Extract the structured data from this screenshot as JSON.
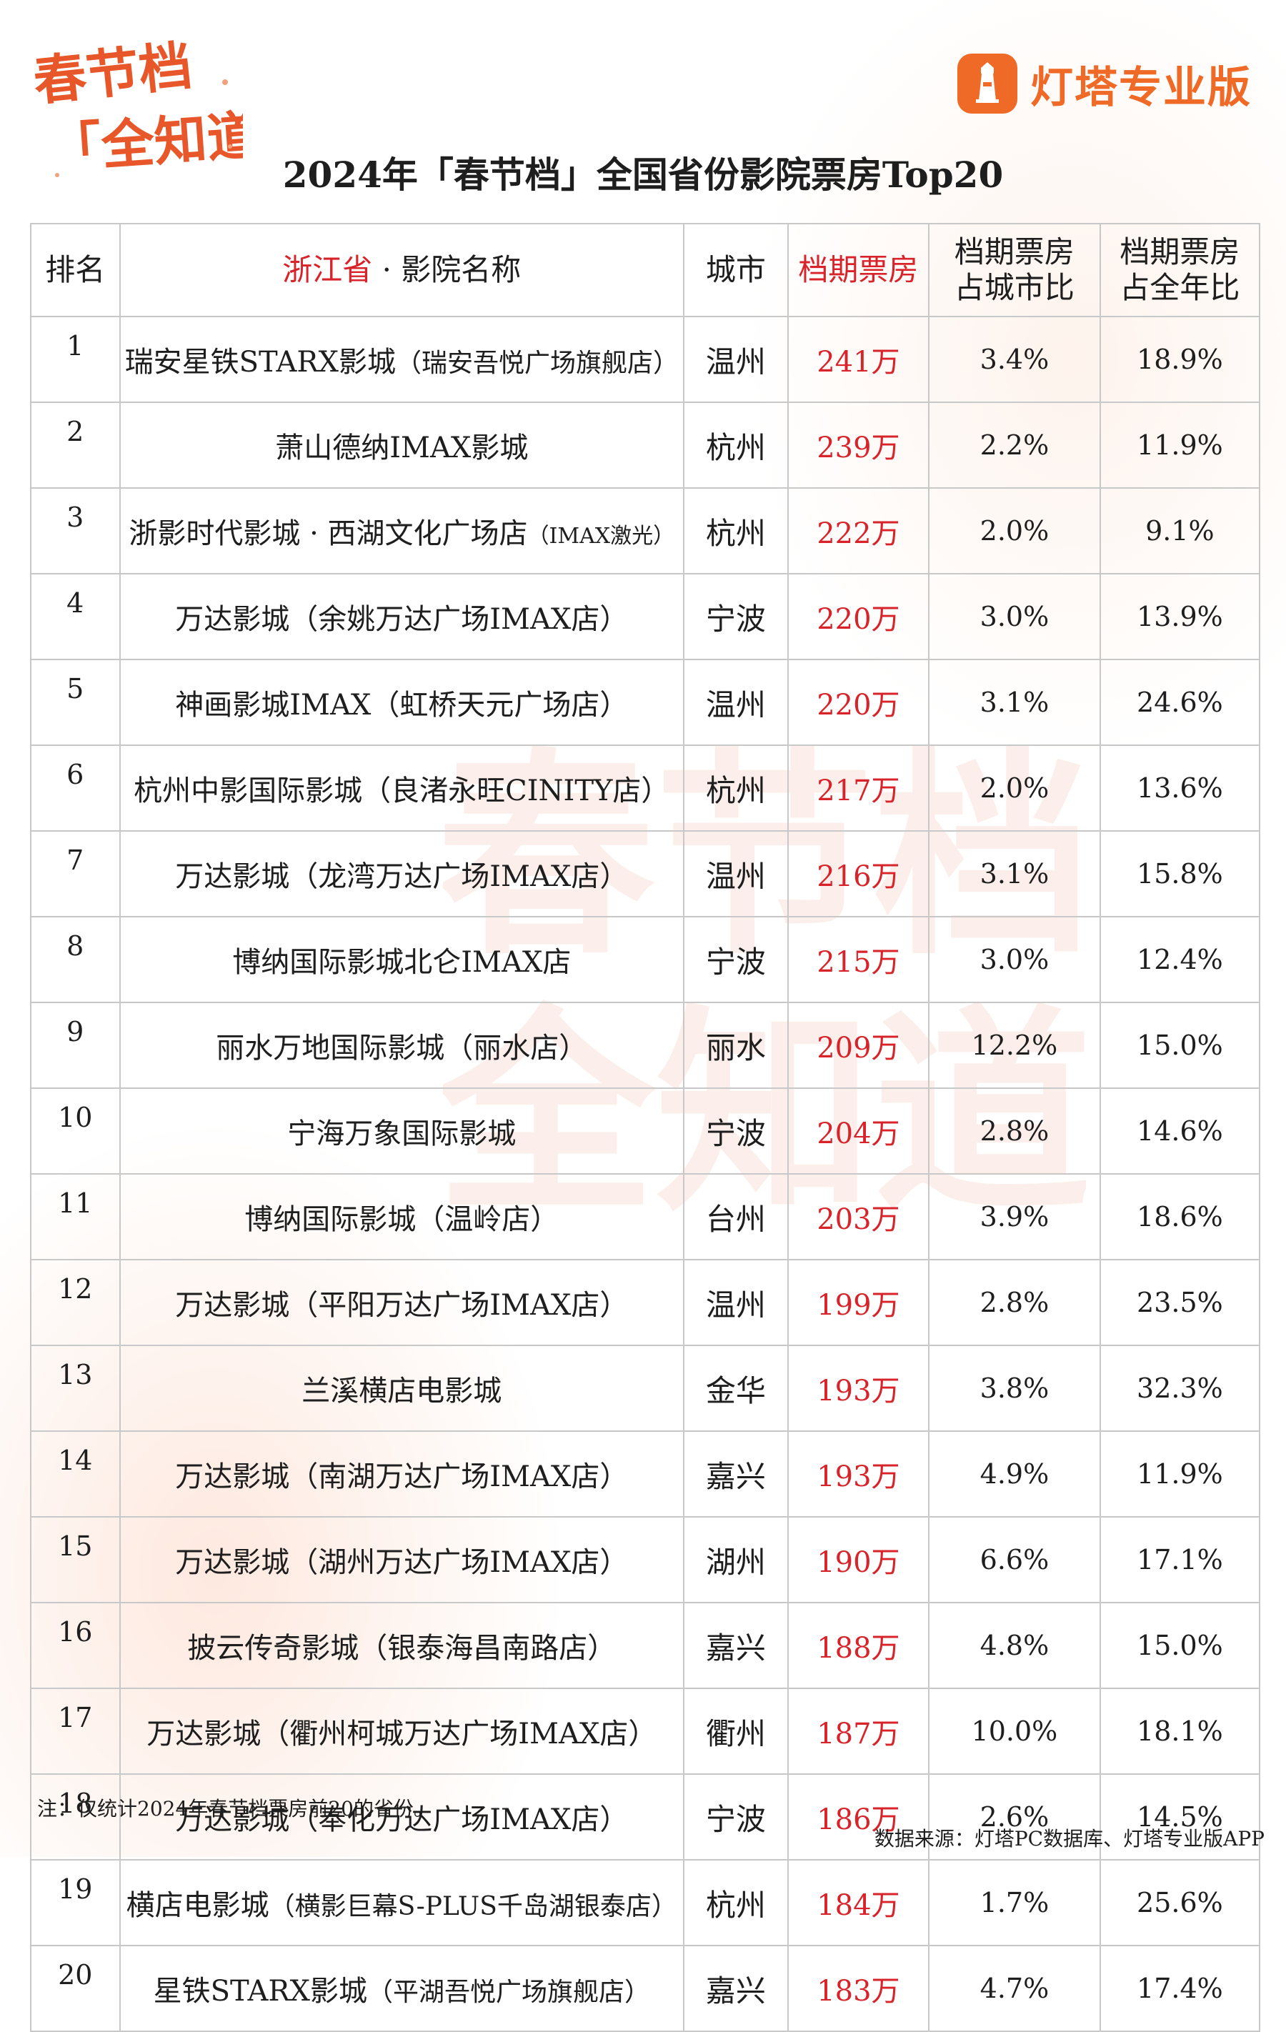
{
  "header": {
    "festival_logo_text": "春节档「全知道」",
    "brand_name": "灯塔专业版",
    "title": "2024年「春节档」全国省份影院票房Top20"
  },
  "table": {
    "headers": {
      "rank": "排名",
      "province": "浙江省",
      "name_suffix": " · 影院名称",
      "city": "城市",
      "box": "档期票房",
      "city_share_line1": "档期票房",
      "city_share_line2": "占城市比",
      "year_share_line1": "档期票房",
      "year_share_line2": "占全年比"
    },
    "rows": [
      {
        "rank": "1",
        "name": "瑞安星铁STARX影城",
        "sub": "（瑞安吾悦广场旗舰店）",
        "city": "温州",
        "box": "241万",
        "city_share": "3.4%",
        "year_share": "18.9%"
      },
      {
        "rank": "2",
        "name": "萧山德纳IMAX影城",
        "sub": "",
        "city": "杭州",
        "box": "239万",
        "city_share": "2.2%",
        "year_share": "11.9%"
      },
      {
        "rank": "3",
        "name": "浙影时代影城 · 西湖文化广场店",
        "sub": "（IMAX激光）",
        "city": "杭州",
        "box": "222万",
        "city_share": "2.0%",
        "year_share": "9.1%"
      },
      {
        "rank": "4",
        "name": "万达影城（余姚万达广场IMAX店）",
        "sub": "",
        "city": "宁波",
        "box": "220万",
        "city_share": "3.0%",
        "year_share": "13.9%"
      },
      {
        "rank": "5",
        "name": "神画影城IMAX（虹桥天元广场店）",
        "sub": "",
        "city": "温州",
        "box": "220万",
        "city_share": "3.1%",
        "year_share": "24.6%"
      },
      {
        "rank": "6",
        "name": "杭州中影国际影城（良渚永旺CINITY店）",
        "sub": "",
        "city": "杭州",
        "box": "217万",
        "city_share": "2.0%",
        "year_share": "13.6%"
      },
      {
        "rank": "7",
        "name": "万达影城（龙湾万达广场IMAX店）",
        "sub": "",
        "city": "温州",
        "box": "216万",
        "city_share": "3.1%",
        "year_share": "15.8%"
      },
      {
        "rank": "8",
        "name": "博纳国际影城北仑IMAX店",
        "sub": "",
        "city": "宁波",
        "box": "215万",
        "city_share": "3.0%",
        "year_share": "12.4%"
      },
      {
        "rank": "9",
        "name": "丽水万地国际影城（丽水店）",
        "sub": "",
        "city": "丽水",
        "box": "209万",
        "city_share": "12.2%",
        "year_share": "15.0%"
      },
      {
        "rank": "10",
        "name": "宁海万象国际影城",
        "sub": "",
        "city": "宁波",
        "box": "204万",
        "city_share": "2.8%",
        "year_share": "14.6%"
      },
      {
        "rank": "11",
        "name": "博纳国际影城（温岭店）",
        "sub": "",
        "city": "台州",
        "box": "203万",
        "city_share": "3.9%",
        "year_share": "18.6%"
      },
      {
        "rank": "12",
        "name": "万达影城（平阳万达广场IMAX店）",
        "sub": "",
        "city": "温州",
        "box": "199万",
        "city_share": "2.8%",
        "year_share": "23.5%"
      },
      {
        "rank": "13",
        "name": "兰溪横店电影城",
        "sub": "",
        "city": "金华",
        "box": "193万",
        "city_share": "3.8%",
        "year_share": "32.3%"
      },
      {
        "rank": "14",
        "name": "万达影城（南湖万达广场IMAX店）",
        "sub": "",
        "city": "嘉兴",
        "box": "193万",
        "city_share": "4.9%",
        "year_share": "11.9%"
      },
      {
        "rank": "15",
        "name": "万达影城（湖州万达广场IMAX店）",
        "sub": "",
        "city": "湖州",
        "box": "190万",
        "city_share": "6.6%",
        "year_share": "17.1%"
      },
      {
        "rank": "16",
        "name": "披云传奇影城（银泰海昌南路店）",
        "sub": "",
        "city": "嘉兴",
        "box": "188万",
        "city_share": "4.8%",
        "year_share": "15.0%"
      },
      {
        "rank": "17",
        "name": "万达影城（衢州柯城万达广场IMAX店）",
        "sub": "",
        "city": "衢州",
        "box": "187万",
        "city_share": "10.0%",
        "year_share": "18.1%"
      },
      {
        "rank": "18",
        "name": "万达影城（奉化万达广场IMAX店）",
        "sub": "",
        "city": "宁波",
        "box": "186万",
        "city_share": "2.6%",
        "year_share": "14.5%"
      },
      {
        "rank": "19",
        "name": "横店电影城",
        "sub": "（横影巨幕S-PLUS千岛湖银泰店）",
        "city": "杭州",
        "box": "184万",
        "city_share": "1.7%",
        "year_share": "25.6%"
      },
      {
        "rank": "20",
        "name": "星铁STARX影城",
        "sub": "（平湖吾悦广场旗舰店）",
        "city": "嘉兴",
        "box": "183万",
        "city_share": "4.7%",
        "year_share": "17.4%"
      }
    ]
  },
  "footnote": "注：仅统计2024年春节档票房前20的省份。",
  "source": "数据来源：灯塔PC数据库、灯塔专业版APP",
  "colors": {
    "accent_red": "#d8232a",
    "brand_orange": "#ef6a26",
    "border": "#c8c8c8"
  },
  "icons": {
    "brand": "lighthouse-logo-icon",
    "festival": "spring-festival-logo"
  }
}
